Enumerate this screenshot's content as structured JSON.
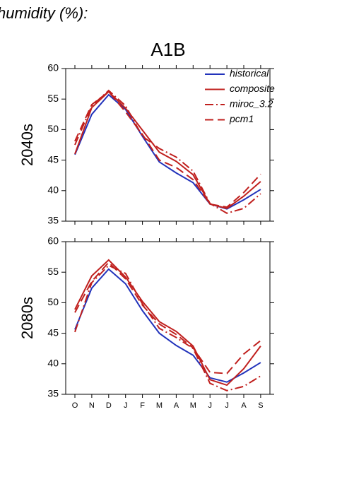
{
  "page_title": "humidity (%):",
  "chart_data": [
    {
      "type": "line",
      "title": "A1B",
      "y_label": "2040s",
      "legend": true,
      "legend_position": "upper right",
      "ylim": [
        35,
        60
      ],
      "yticks": [
        35,
        40,
        45,
        50,
        55,
        60
      ],
      "series": [
        {
          "name": "historical",
          "color": "#2233bb",
          "dash": "solid",
          "values": [
            45.9,
            52.5,
            55.7,
            53.3,
            48.9,
            44.7,
            42.9,
            41.3,
            37.8,
            37.0,
            38.5,
            40.2
          ]
        },
        {
          "name": "composite",
          "color": "#c0201e",
          "dash": "solid",
          "values": [
            46.0,
            53.6,
            56.2,
            53.5,
            49.9,
            46.3,
            44.8,
            42.6,
            37.8,
            37.1,
            39.1,
            41.5
          ]
        },
        {
          "name": "miroc_3.2",
          "color": "#c0201e",
          "dash": "dashdot",
          "values": [
            47.5,
            53.9,
            56.4,
            53.9,
            48.9,
            46.9,
            45.5,
            43.2,
            37.9,
            36.3,
            37.1,
            39.5
          ]
        },
        {
          "name": "pcm1",
          "color": "#c0201e",
          "dash": "dashed",
          "values": [
            48.1,
            54.1,
            56.2,
            52.9,
            49.2,
            45.0,
            43.8,
            41.8,
            37.8,
            37.3,
            39.7,
            42.7
          ]
        }
      ]
    },
    {
      "type": "line",
      "y_label": "2080s",
      "legend": false,
      "categories": [
        "O",
        "N",
        "D",
        "J",
        "F",
        "M",
        "A",
        "M",
        "J",
        "J",
        "A",
        "S"
      ],
      "ylim": [
        35,
        60
      ],
      "yticks": [
        35,
        40,
        45,
        50,
        55,
        60
      ],
      "series": [
        {
          "color": "#2233bb",
          "dash": "solid",
          "values": [
            45.6,
            52.4,
            55.5,
            53.1,
            48.7,
            45.0,
            43.0,
            41.4,
            37.7,
            37.0,
            38.5,
            40.2
          ]
        },
        {
          "color": "#c0201e",
          "dash": "solid",
          "values": [
            48.9,
            54.4,
            57.0,
            54.2,
            50.2,
            46.9,
            45.3,
            42.9,
            37.4,
            36.5,
            39.2,
            42.9
          ]
        },
        {
          "color": "#c0201e",
          "dash": "dashdot",
          "values": [
            45.2,
            53.3,
            56.1,
            54.8,
            49.8,
            45.8,
            44.3,
            42.5,
            36.8,
            35.6,
            36.3,
            38.0
          ]
        },
        {
          "color": "#c0201e",
          "dash": "dashed",
          "values": [
            48.4,
            53.5,
            56.6,
            53.9,
            49.6,
            46.5,
            44.8,
            42.6,
            38.6,
            38.4,
            41.6,
            43.8
          ]
        }
      ]
    }
  ]
}
